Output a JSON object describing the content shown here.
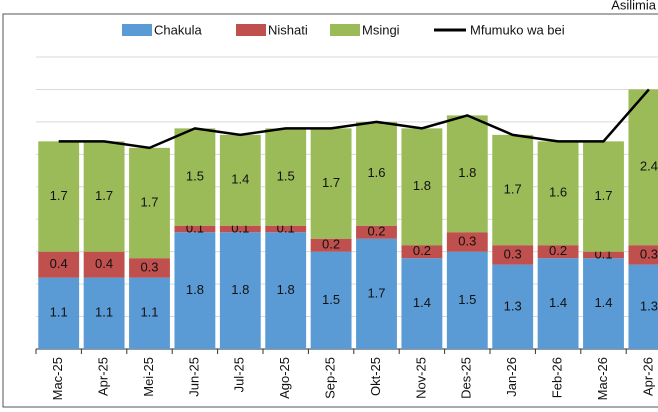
{
  "chart_data": {
    "type": "stacked-bar-line",
    "y_label": "Asilimia",
    "categories": [
      "Mac-25",
      "Apr-25",
      "Mei-25",
      "Jun-25",
      "Jul-25",
      "Ago-25",
      "Sep-25",
      "Okt-25",
      "Nov-25",
      "Des-25",
      "Jan-26",
      "Feb-26",
      "Mac-26",
      "Apr-26"
    ],
    "series": [
      {
        "name": "Chakula",
        "color": "#5b9bd5",
        "values": [
          1.1,
          1.1,
          1.1,
          1.8,
          1.8,
          1.8,
          1.5,
          1.7,
          1.4,
          1.5,
          1.3,
          1.4,
          1.4,
          1.3
        ]
      },
      {
        "name": "Nishati",
        "color": "#c0504d",
        "values": [
          0.4,
          0.4,
          0.3,
          0.1,
          0.1,
          0.1,
          0.2,
          0.2,
          0.2,
          0.3,
          0.3,
          0.2,
          0.1,
          0.3
        ]
      },
      {
        "name": "Msingi",
        "color": "#9bbb59",
        "values": [
          1.7,
          1.7,
          1.7,
          1.5,
          1.4,
          1.5,
          1.7,
          1.6,
          1.8,
          1.8,
          1.7,
          1.6,
          1.7,
          2.4
        ]
      },
      {
        "name": "Mfumuko wa bei",
        "color": "#000000",
        "kind": "line",
        "values": [
          3.2,
          3.2,
          3.1,
          3.4,
          3.3,
          3.4,
          3.4,
          3.5,
          3.4,
          3.6,
          3.3,
          3.2,
          3.2,
          4.0
        ]
      }
    ],
    "ylim": [
      0,
      4.5
    ],
    "yticks": [
      0,
      0.5,
      1,
      1.5,
      2,
      2.5,
      3,
      3.5,
      4,
      4.5
    ],
    "grid": true
  }
}
